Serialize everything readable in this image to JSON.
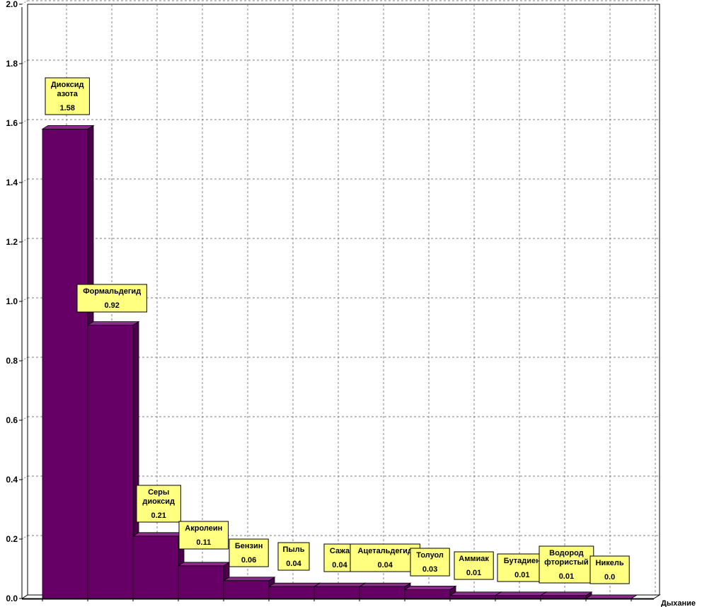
{
  "chart_data": {
    "type": "bar",
    "style": "3d",
    "categories": [
      "Диоксид азота",
      "Формальдегид",
      "Серы диоксид",
      "Акролеин",
      "Бензин",
      "Пыль",
      "Сажа",
      "Ацетальдегид",
      "Толуол",
      "Аммиак",
      "Бутадиен",
      "Водород фтористый",
      "Никель"
    ],
    "label_lines": [
      [
        "Диоксид",
        "азота"
      ],
      [
        "Формальдегид"
      ],
      [
        "Серы",
        "диоксид"
      ],
      [
        "Акролеин"
      ],
      [
        "Бензин"
      ],
      [
        "Пыль"
      ],
      [
        "Сажа"
      ],
      [
        "Ацетальдегид"
      ],
      [
        "Толуол"
      ],
      [
        "Аммиак"
      ],
      [
        "Бутадиен"
      ],
      [
        "Водород",
        "фтористый"
      ],
      [
        "Никель"
      ]
    ],
    "values": [
      1.58,
      0.92,
      0.21,
      0.11,
      0.06,
      0.04,
      0.04,
      0.04,
      0.03,
      0.01,
      0.01,
      0.01,
      0.0
    ],
    "value_labels": [
      "1.58",
      "0.92",
      "0.21",
      "0.11",
      "0.06",
      "0.04",
      "0.04",
      "0.04",
      "0.03",
      "0.01",
      "0.01",
      "0.01",
      "0.0"
    ],
    "y_ticks": [
      "0.0",
      "0.2",
      "0.4",
      "0.6",
      "0.8",
      "1.0",
      "1.2",
      "1.4",
      "1.6",
      "1.8",
      "2.0"
    ],
    "ylim": [
      0,
      2.0
    ],
    "xlabel": "Дыхание",
    "ylabel": "",
    "title": "",
    "grid": true,
    "legend": "none",
    "colors": {
      "bar_front": "#660066",
      "bar_top": "#8a2a8a",
      "bar_side": "#4a004a",
      "label_bg": "#ffff80",
      "grid": "#808080",
      "axis": "#000000"
    }
  }
}
